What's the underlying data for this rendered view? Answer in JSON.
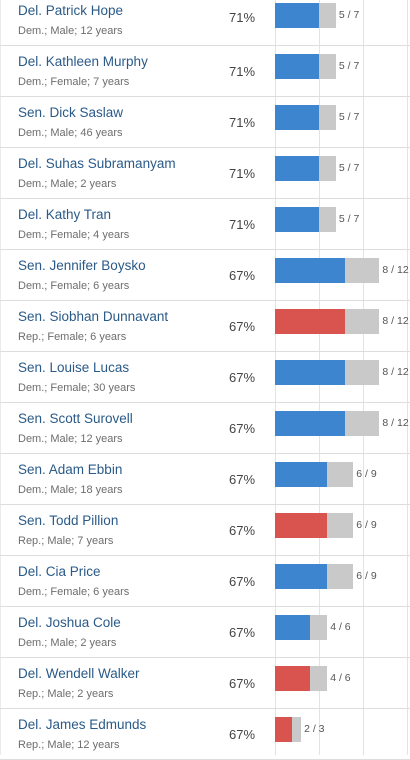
{
  "colors": {
    "dem": "#3d86cf",
    "rep": "#d9534f",
    "track": "#c9c9c9",
    "name": "#2a5a88"
  },
  "rows": [
    {
      "name": "Del. Patrick Hope",
      "meta": "Dem.; Male; 12 years",
      "pct": "71%",
      "party": "dem",
      "num": 5,
      "den": 7,
      "frac": "5 / 7"
    },
    {
      "name": "Del. Kathleen Murphy",
      "meta": "Dem.; Female; 7 years",
      "pct": "71%",
      "party": "dem",
      "num": 5,
      "den": 7,
      "frac": "5 / 7"
    },
    {
      "name": "Sen. Dick Saslaw",
      "meta": "Dem.; Male; 46 years",
      "pct": "71%",
      "party": "dem",
      "num": 5,
      "den": 7,
      "frac": "5 / 7"
    },
    {
      "name": "Del. Suhas Subramanyam",
      "meta": "Dem.; Male; 2 years",
      "pct": "71%",
      "party": "dem",
      "num": 5,
      "den": 7,
      "frac": "5 / 7"
    },
    {
      "name": "Del. Kathy Tran",
      "meta": "Dem.; Female; 4 years",
      "pct": "71%",
      "party": "dem",
      "num": 5,
      "den": 7,
      "frac": "5 / 7"
    },
    {
      "name": "Sen. Jennifer Boysko",
      "meta": "Dem.; Female; 6 years",
      "pct": "67%",
      "party": "dem",
      "num": 8,
      "den": 12,
      "frac": "8 / 12"
    },
    {
      "name": "Sen. Siobhan Dunnavant",
      "meta": "Rep.; Female; 6 years",
      "pct": "67%",
      "party": "rep",
      "num": 8,
      "den": 12,
      "frac": "8 / 12"
    },
    {
      "name": "Sen. Louise Lucas",
      "meta": "Dem.; Female; 30 years",
      "pct": "67%",
      "party": "dem",
      "num": 8,
      "den": 12,
      "frac": "8 / 12"
    },
    {
      "name": "Sen. Scott Surovell",
      "meta": "Dem.; Male; 12 years",
      "pct": "67%",
      "party": "dem",
      "num": 8,
      "den": 12,
      "frac": "8 / 12"
    },
    {
      "name": "Sen. Adam Ebbin",
      "meta": "Dem.; Male; 18 years",
      "pct": "67%",
      "party": "dem",
      "num": 6,
      "den": 9,
      "frac": "6 / 9"
    },
    {
      "name": "Sen. Todd Pillion",
      "meta": "Rep.; Male; 7 years",
      "pct": "67%",
      "party": "rep",
      "num": 6,
      "den": 9,
      "frac": "6 / 9"
    },
    {
      "name": "Del. Cia Price",
      "meta": "Dem.; Female; 6 years",
      "pct": "67%",
      "party": "dem",
      "num": 6,
      "den": 9,
      "frac": "6 / 9"
    },
    {
      "name": "Del. Joshua Cole",
      "meta": "Dem.; Male; 2 years",
      "pct": "67%",
      "party": "dem",
      "num": 4,
      "den": 6,
      "frac": "4 / 6"
    },
    {
      "name": "Del. Wendell Walker",
      "meta": "Rep.; Male; 2 years",
      "pct": "67%",
      "party": "rep",
      "num": 4,
      "den": 6,
      "frac": "4 / 6"
    },
    {
      "name": "Del. James Edmunds",
      "meta": "Rep.; Male; 12 years",
      "pct": "67%",
      "party": "rep",
      "num": 2,
      "den": 3,
      "frac": "2 / 3"
    }
  ]
}
